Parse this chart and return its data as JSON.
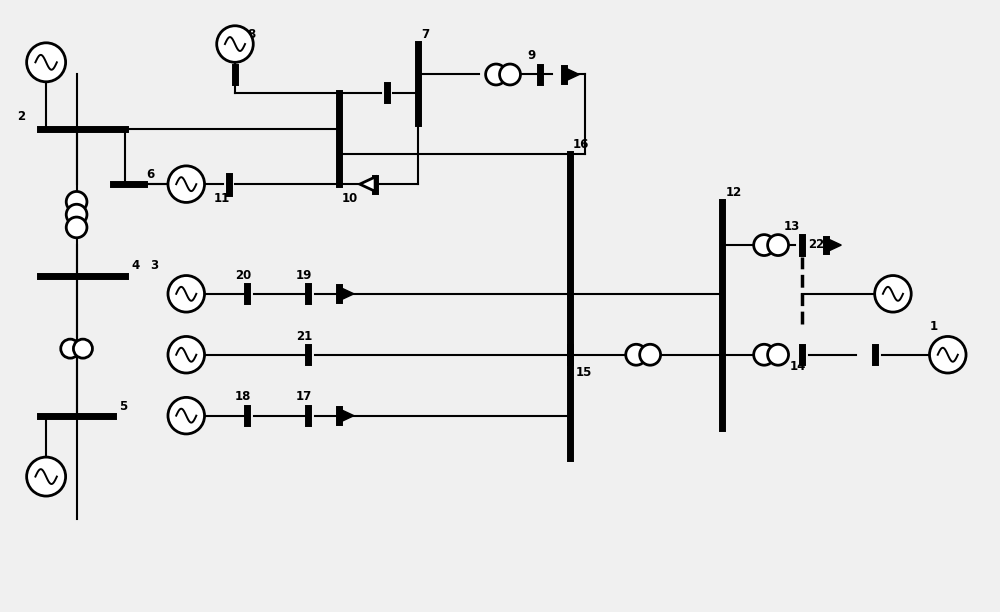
{
  "bg_color": "#f0f0f0",
  "fig_width": 10.0,
  "fig_height": 6.12
}
